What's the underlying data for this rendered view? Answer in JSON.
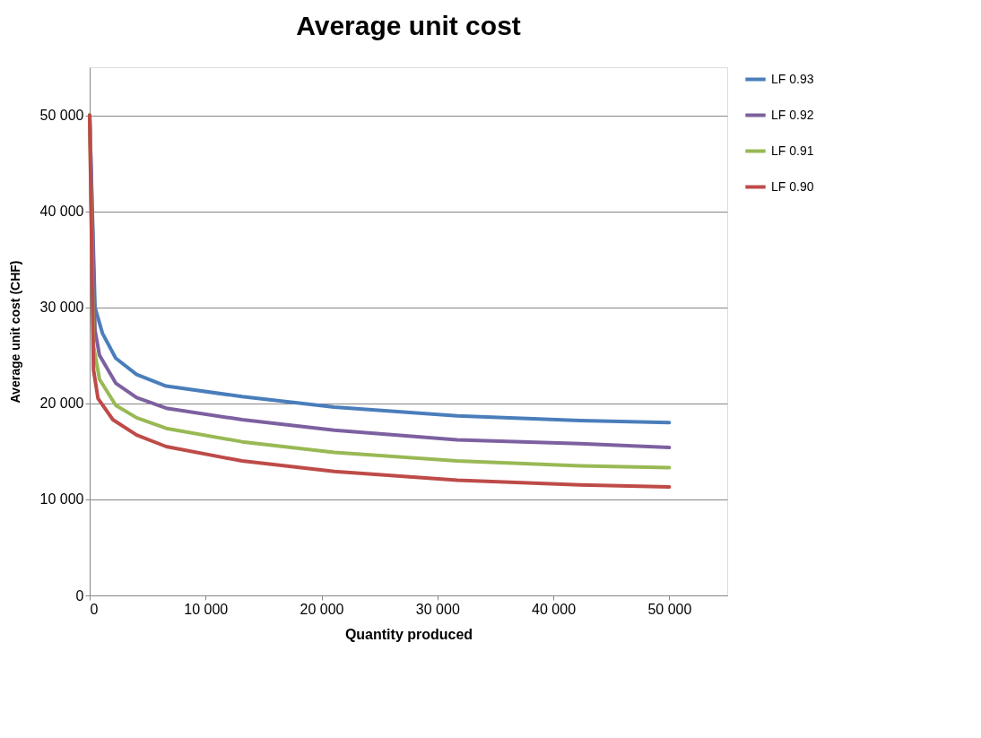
{
  "chart_data": {
    "type": "line",
    "title": "Average unit cost",
    "xlabel": "Quantity produced",
    "ylabel": "Average unit cost (CHF)",
    "xlim": [
      0,
      55000
    ],
    "xticks": [
      0,
      {
        "value": 10000,
        "label": "10 000"
      },
      {
        "value": 20000,
        "label": "20 000"
      },
      {
        "value": 30000,
        "label": "30 000"
      },
      {
        "value": 40000,
        "label": "40 000"
      },
      {
        "value": 50000,
        "label": "50 000"
      }
    ],
    "ylim": [
      0,
      55000
    ],
    "yticks": [
      0,
      {
        "value": 10000,
        "label": "10 000"
      },
      {
        "value": 20000,
        "label": "20 000"
      },
      {
        "value": 30000,
        "label": "30 000"
      },
      {
        "value": 40000,
        "label": "40 000"
      },
      {
        "value": 50000,
        "label": "50 000"
      }
    ],
    "grid": "y",
    "legend": "right",
    "marker": "none",
    "line_style": "solid",
    "series": [
      {
        "name": "LF 0.93",
        "color": "#4a7ebb",
        "x": [
          0,
          460,
          1100,
          2250,
          4050,
          6600,
          13150,
          21100,
          31700,
          42300,
          50000
        ],
        "values": [
          50000,
          30000,
          27300,
          24700,
          23000,
          21800,
          20700,
          19600,
          18700,
          18200,
          18000
        ]
      },
      {
        "name": "LF 0.92",
        "color": "#7d60a0",
        "x": [
          0,
          460,
          850,
          2250,
          4050,
          6600,
          13150,
          21100,
          31700,
          42300,
          50000
        ],
        "values": [
          50000,
          27600,
          25000,
          22100,
          20600,
          19500,
          18300,
          17200,
          16200,
          15800,
          15400
        ]
      },
      {
        "name": "LF 0.91",
        "color": "#98b954",
        "x": [
          0,
          330,
          850,
          2250,
          4050,
          6600,
          13150,
          21100,
          31700,
          42300,
          50000
        ],
        "values": [
          50000,
          26000,
          22500,
          19800,
          18500,
          17400,
          16000,
          14900,
          14000,
          13500,
          13300
        ]
      },
      {
        "name": "LF 0.90",
        "color": "#be4b48",
        "x": [
          0,
          330,
          720,
          2000,
          4050,
          6600,
          13150,
          21100,
          31700,
          42300,
          50000
        ],
        "values": [
          50000,
          23500,
          20500,
          18300,
          16700,
          15500,
          14000,
          12900,
          12000,
          11500,
          11300
        ]
      }
    ]
  }
}
